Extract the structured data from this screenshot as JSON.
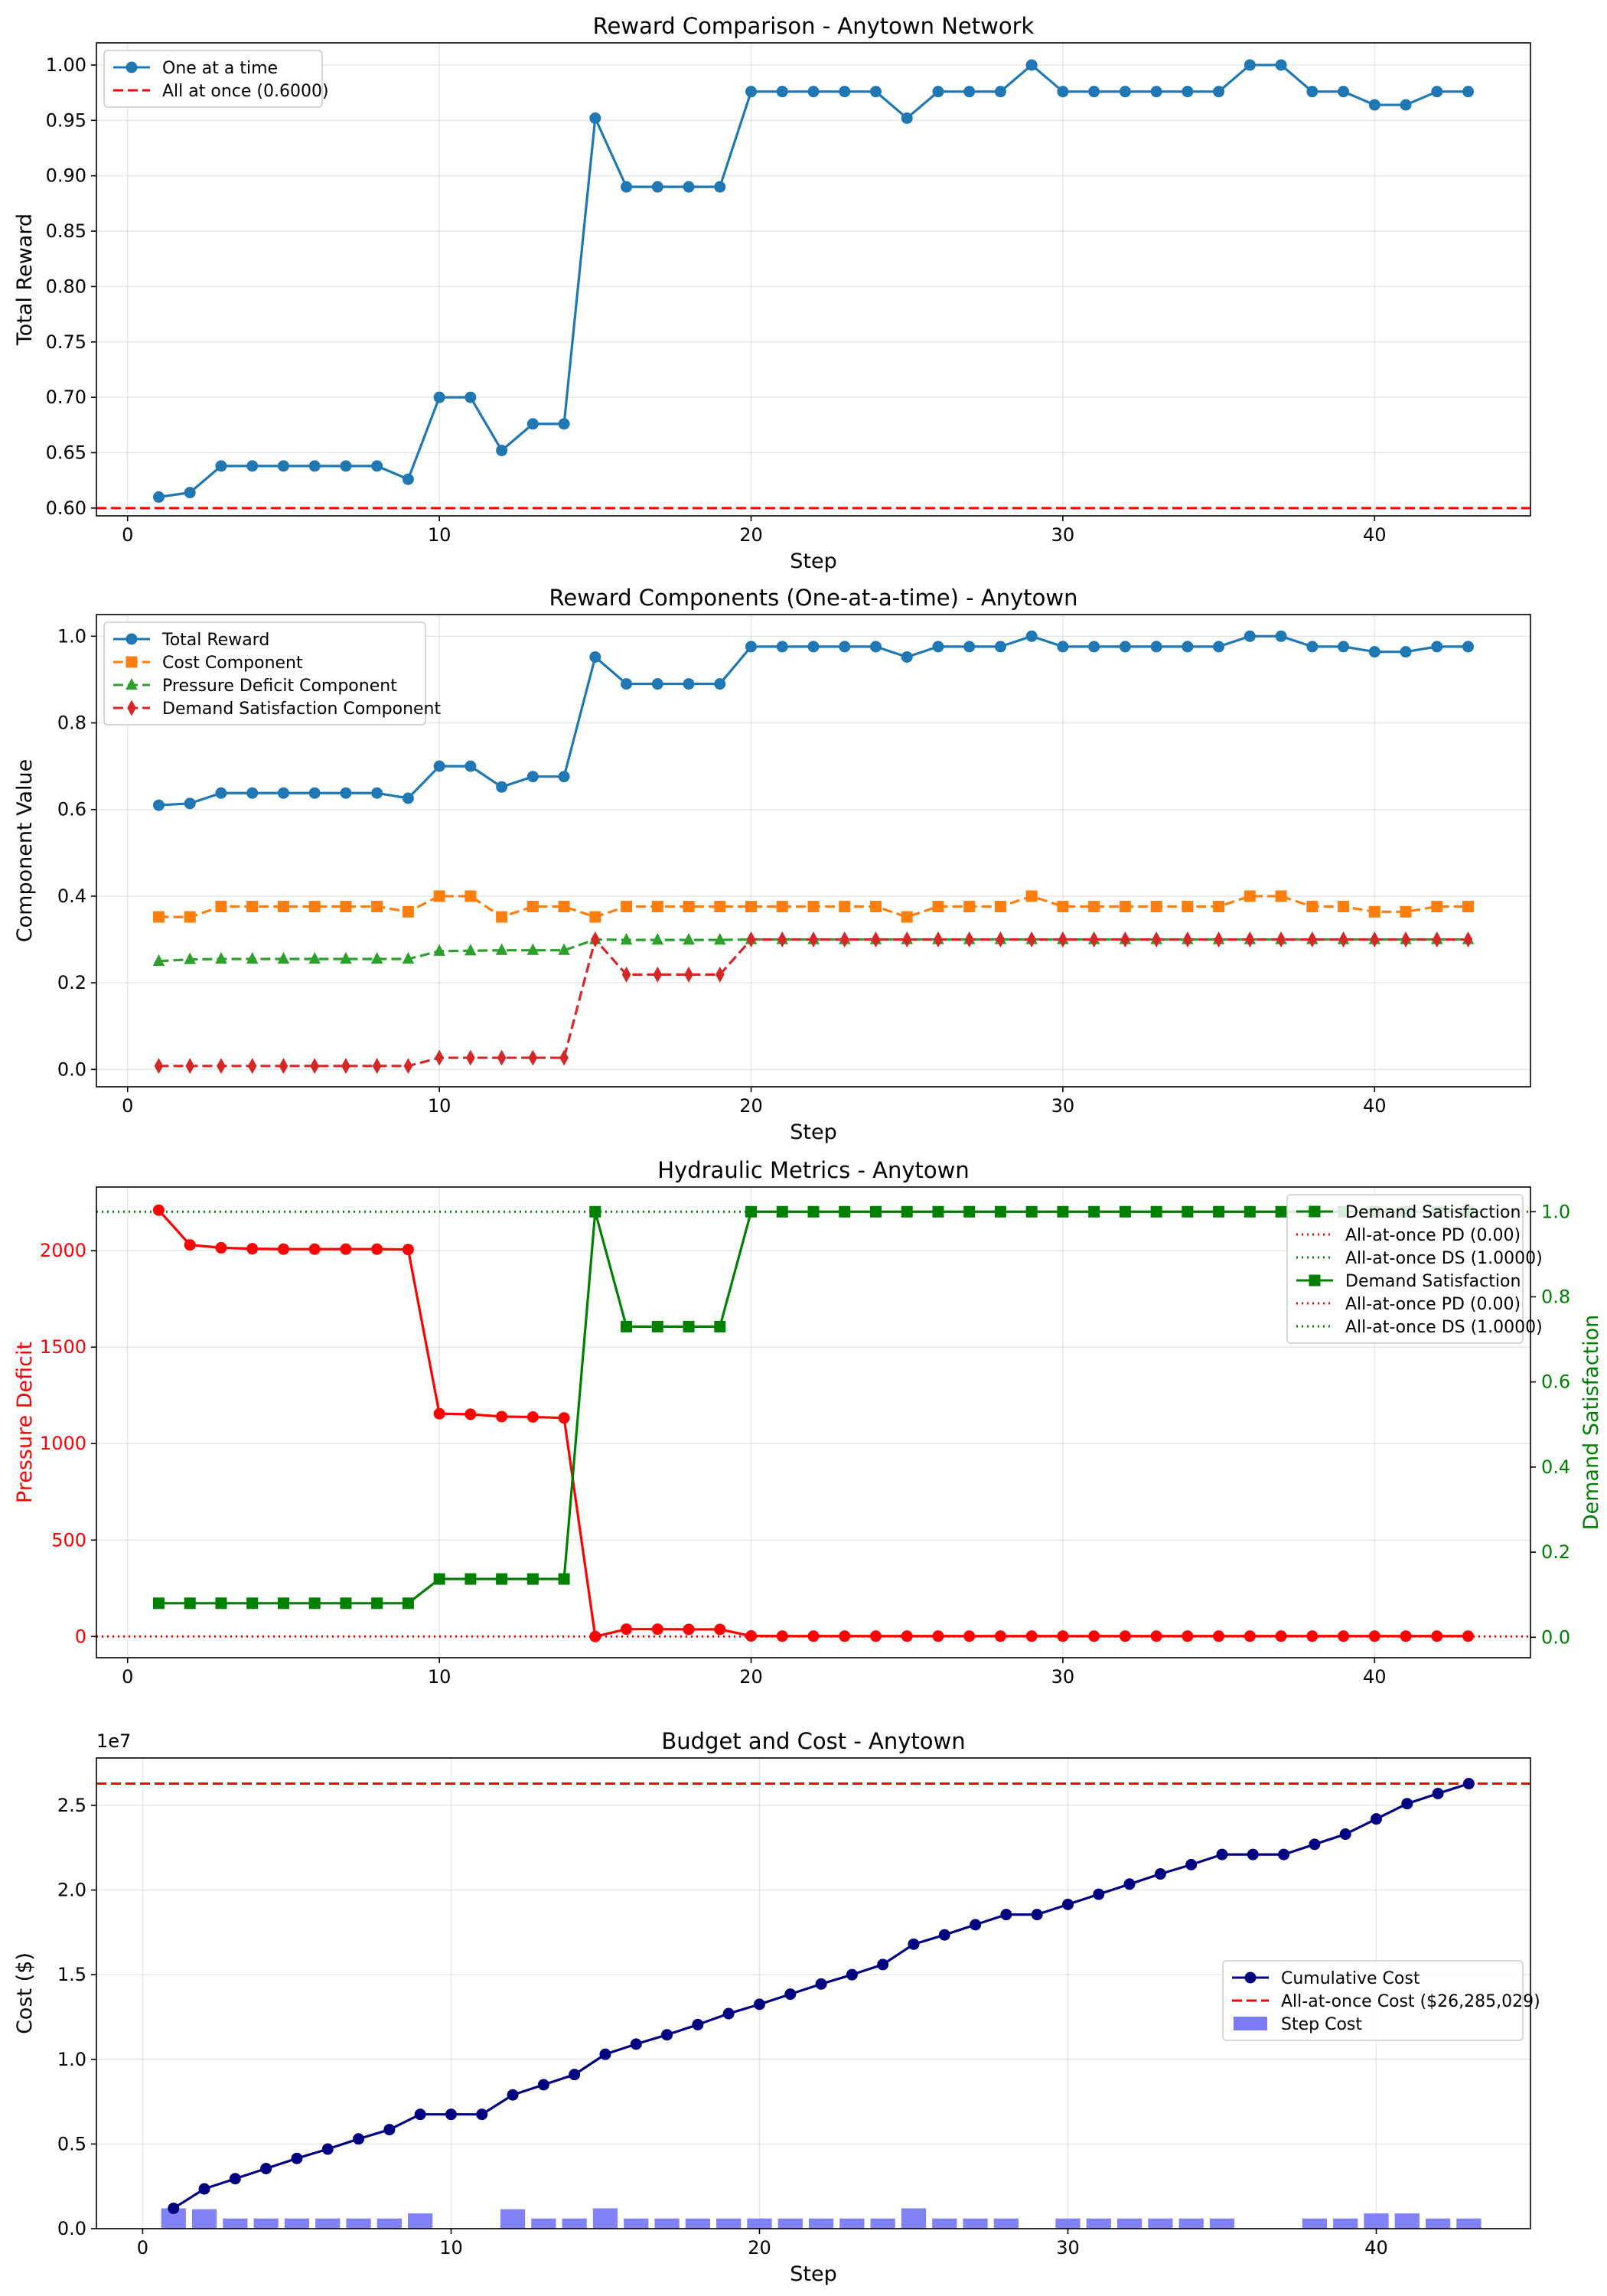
{
  "chart_data": [
    {
      "type": "line",
      "title": "Reward Comparison - Anytown Network",
      "xlabel": "Step",
      "ylabel": "Total Reward",
      "xlim": [
        -1,
        45
      ],
      "ylim": [
        0.593,
        1.02
      ],
      "xticks": [
        0,
        10,
        20,
        30,
        40
      ],
      "yticks": [
        0.6,
        0.65,
        0.7,
        0.75,
        0.8,
        0.85,
        0.9,
        0.95,
        1.0
      ],
      "grid": true,
      "legend_position": "upper left",
      "series": [
        {
          "name": "One at a time",
          "color": "#1f77b4",
          "x": [
            1,
            2,
            3,
            4,
            5,
            6,
            7,
            8,
            9,
            10,
            11,
            12,
            13,
            14,
            15,
            16,
            17,
            18,
            19,
            20,
            21,
            22,
            23,
            24,
            25,
            26,
            27,
            28,
            29,
            30,
            31,
            32,
            33,
            34,
            35,
            36,
            37,
            38,
            39,
            40,
            41,
            42,
            43
          ],
          "y": [
            0.61,
            0.614,
            0.638,
            0.638,
            0.638,
            0.638,
            0.638,
            0.638,
            0.626,
            0.7,
            0.7,
            0.652,
            0.676,
            0.676,
            0.952,
            0.89,
            0.89,
            0.89,
            0.89,
            0.976,
            0.976,
            0.976,
            0.976,
            0.976,
            0.952,
            0.976,
            0.976,
            0.976,
            1.0,
            0.976,
            0.976,
            0.976,
            0.976,
            0.976,
            0.976,
            1.0,
            1.0,
            0.976,
            0.976,
            0.964,
            0.964,
            0.976,
            0.976
          ]
        }
      ],
      "hlines": [
        {
          "name": "All at once (0.6000)",
          "y": 0.6,
          "color": "#ff0000",
          "style": "dashed"
        }
      ]
    },
    {
      "type": "line",
      "title": "Reward Components (One-at-a-time) - Anytown",
      "xlabel": "Step",
      "ylabel": "Component Value",
      "xlim": [
        -1,
        45
      ],
      "ylim": [
        -0.04,
        1.05
      ],
      "xticks": [
        0,
        10,
        20,
        30,
        40
      ],
      "yticks": [
        0.0,
        0.2,
        0.4,
        0.6,
        0.8,
        1.0
      ],
      "grid": true,
      "legend_position": "upper left",
      "series": [
        {
          "name": "Total Reward",
          "color": "#1f77b4",
          "marker": "circle",
          "style": "solid",
          "x": [
            1,
            2,
            3,
            4,
            5,
            6,
            7,
            8,
            9,
            10,
            11,
            12,
            13,
            14,
            15,
            16,
            17,
            18,
            19,
            20,
            21,
            22,
            23,
            24,
            25,
            26,
            27,
            28,
            29,
            30,
            31,
            32,
            33,
            34,
            35,
            36,
            37,
            38,
            39,
            40,
            41,
            42,
            43
          ],
          "y": [
            0.61,
            0.614,
            0.638,
            0.638,
            0.638,
            0.638,
            0.638,
            0.638,
            0.626,
            0.7,
            0.7,
            0.652,
            0.676,
            0.676,
            0.952,
            0.89,
            0.89,
            0.89,
            0.89,
            0.976,
            0.976,
            0.976,
            0.976,
            0.976,
            0.952,
            0.976,
            0.976,
            0.976,
            1.0,
            0.976,
            0.976,
            0.976,
            0.976,
            0.976,
            0.976,
            1.0,
            1.0,
            0.976,
            0.976,
            0.964,
            0.964,
            0.976,
            0.976
          ]
        },
        {
          "name": "Cost Component",
          "color": "#ff7f0e",
          "marker": "square",
          "style": "dashed",
          "x": [
            1,
            2,
            3,
            4,
            5,
            6,
            7,
            8,
            9,
            10,
            11,
            12,
            13,
            14,
            15,
            16,
            17,
            18,
            19,
            20,
            21,
            22,
            23,
            24,
            25,
            26,
            27,
            28,
            29,
            30,
            31,
            32,
            33,
            34,
            35,
            36,
            37,
            38,
            39,
            40,
            41,
            42,
            43
          ],
          "y": [
            0.352,
            0.352,
            0.376,
            0.376,
            0.376,
            0.376,
            0.376,
            0.376,
            0.364,
            0.4,
            0.4,
            0.352,
            0.376,
            0.376,
            0.352,
            0.376,
            0.376,
            0.376,
            0.376,
            0.376,
            0.376,
            0.376,
            0.376,
            0.376,
            0.352,
            0.376,
            0.376,
            0.376,
            0.4,
            0.376,
            0.376,
            0.376,
            0.376,
            0.376,
            0.376,
            0.4,
            0.4,
            0.376,
            0.376,
            0.364,
            0.364,
            0.376,
            0.376
          ]
        },
        {
          "name": "Pressure Deficit Component",
          "color": "#2ca02c",
          "marker": "triangle",
          "style": "dashed",
          "x": [
            1,
            2,
            3,
            4,
            5,
            6,
            7,
            8,
            9,
            10,
            11,
            12,
            13,
            14,
            15,
            16,
            17,
            18,
            19,
            20,
            21,
            22,
            23,
            24,
            25,
            26,
            27,
            28,
            29,
            30,
            31,
            32,
            33,
            34,
            35,
            36,
            37,
            38,
            39,
            40,
            41,
            42,
            43
          ],
          "y": [
            0.25,
            0.254,
            0.255,
            0.255,
            0.255,
            0.255,
            0.255,
            0.255,
            0.255,
            0.273,
            0.274,
            0.275,
            0.275,
            0.275,
            0.3,
            0.299,
            0.299,
            0.299,
            0.299,
            0.3,
            0.3,
            0.3,
            0.3,
            0.3,
            0.3,
            0.3,
            0.3,
            0.3,
            0.3,
            0.3,
            0.3,
            0.3,
            0.3,
            0.3,
            0.3,
            0.3,
            0.3,
            0.3,
            0.3,
            0.3,
            0.3,
            0.3,
            0.3
          ]
        },
        {
          "name": "Demand Satisfaction Component",
          "color": "#d62728",
          "marker": "diamond",
          "style": "dashed",
          "x": [
            1,
            2,
            3,
            4,
            5,
            6,
            7,
            8,
            9,
            10,
            11,
            12,
            13,
            14,
            15,
            16,
            17,
            18,
            19,
            20,
            21,
            22,
            23,
            24,
            25,
            26,
            27,
            28,
            29,
            30,
            31,
            32,
            33,
            34,
            35,
            36,
            37,
            38,
            39,
            40,
            41,
            42,
            43
          ],
          "y": [
            0.008,
            0.008,
            0.008,
            0.008,
            0.008,
            0.008,
            0.008,
            0.008,
            0.008,
            0.027,
            0.027,
            0.027,
            0.027,
            0.027,
            0.3,
            0.219,
            0.219,
            0.219,
            0.219,
            0.3,
            0.3,
            0.3,
            0.3,
            0.3,
            0.3,
            0.3,
            0.3,
            0.3,
            0.3,
            0.3,
            0.3,
            0.3,
            0.3,
            0.3,
            0.3,
            0.3,
            0.3,
            0.3,
            0.3,
            0.3,
            0.3,
            0.3,
            0.3
          ]
        }
      ]
    },
    {
      "type": "line",
      "title": "Hydraulic Metrics - Anytown",
      "xlabel": "",
      "ylabel": "Pressure Deficit",
      "ylabel_right": "Demand Satisfaction",
      "xlim": [
        -1,
        45
      ],
      "ylim": [
        -110,
        2330
      ],
      "ylim_right": [
        -0.048,
        1.058
      ],
      "xticks": [
        0,
        10,
        20,
        30,
        40
      ],
      "yticks": [
        0,
        500,
        1000,
        1500,
        2000
      ],
      "yticks_right": [
        0.0,
        0.2,
        0.4,
        0.6,
        0.8,
        1.0
      ],
      "yticklabels_right": [
        "0.0",
        "0.2",
        "0.4",
        "0.6",
        "0.8",
        "1.0"
      ],
      "grid": true,
      "legend_position": "upper right",
      "series": [
        {
          "name": "Pressure Deficit",
          "axis": "left",
          "color": "#ff0000",
          "marker": "circle",
          "x": [
            1,
            2,
            3,
            4,
            5,
            6,
            7,
            8,
            9,
            10,
            11,
            12,
            13,
            14,
            15,
            16,
            17,
            18,
            19,
            20,
            21,
            22,
            23,
            24,
            25,
            26,
            27,
            28,
            29,
            30,
            31,
            32,
            33,
            34,
            35,
            36,
            37,
            38,
            39,
            40,
            41,
            42,
            43
          ],
          "y": [
            2210,
            2030,
            2015,
            2010,
            2008,
            2008,
            2008,
            2008,
            2006,
            1155,
            1152,
            1140,
            1138,
            1133,
            0,
            38,
            38,
            37,
            37,
            3,
            2,
            2,
            2,
            2,
            2,
            2,
            2,
            2,
            2,
            2,
            2,
            2,
            2,
            2,
            2,
            2,
            2,
            2,
            2,
            2,
            2,
            2,
            2
          ]
        },
        {
          "name": "Demand Satisfaction",
          "axis": "right",
          "color": "#008000",
          "marker": "square",
          "x": [
            1,
            2,
            3,
            4,
            5,
            6,
            7,
            8,
            9,
            10,
            11,
            12,
            13,
            14,
            15,
            16,
            17,
            18,
            19,
            20,
            21,
            22,
            23,
            24,
            25,
            26,
            27,
            28,
            29,
            30,
            31,
            32,
            33,
            34,
            35,
            36,
            37,
            38,
            39,
            40,
            41,
            42,
            43
          ],
          "y": [
            0.08,
            0.08,
            0.08,
            0.08,
            0.08,
            0.08,
            0.08,
            0.08,
            0.08,
            0.137,
            0.137,
            0.137,
            0.137,
            0.137,
            1.0,
            0.73,
            0.73,
            0.73,
            0.73,
            1.0,
            1.0,
            1.0,
            1.0,
            1.0,
            1.0,
            1.0,
            1.0,
            1.0,
            1.0,
            1.0,
            1.0,
            1.0,
            1.0,
            1.0,
            1.0,
            1.0,
            1.0,
            1.0,
            1.0,
            1.0,
            1.0,
            1.0,
            1.0
          ]
        }
      ],
      "hlines": [
        {
          "name": "All-at-once PD (0.00)",
          "axis": "left",
          "y": 0,
          "color": "#ff0000",
          "style": "dotted"
        },
        {
          "name": "All-at-once DS (1.0000)",
          "axis": "right",
          "y": 1.0,
          "color": "#008000",
          "style": "dotted"
        }
      ],
      "legend_entries": [
        {
          "label": "Demand Satisfaction",
          "color": "#008000",
          "kind": "line-marker"
        },
        {
          "label": "All-at-once PD (0.00)",
          "color": "#ff0000",
          "kind": "dotted"
        },
        {
          "label": "All-at-once DS (1.0000)",
          "color": "#008000",
          "kind": "dotted"
        },
        {
          "label": "Demand Satisfaction",
          "color": "#008000",
          "kind": "line-marker"
        },
        {
          "label": "All-at-once PD (0.00)",
          "color": "#ff0000",
          "kind": "dotted"
        },
        {
          "label": "All-at-once DS (1.0000)",
          "color": "#008000",
          "kind": "dotted"
        }
      ]
    },
    {
      "type": "bar+line",
      "title": "Budget and Cost - Anytown",
      "xlabel": "Step",
      "ylabel": "Cost ($)",
      "offset_label": "1e7",
      "scale": 10000000,
      "xlim": [
        -1.5,
        45
      ],
      "ylim": [
        0,
        27800000
      ],
      "xticks": [
        0,
        10,
        20,
        30,
        40
      ],
      "yticks": [
        0.0,
        0.5,
        1.0,
        1.5,
        2.0,
        2.5
      ],
      "grid": true,
      "legend_position": "center right",
      "series": [
        {
          "name": "Cumulative Cost",
          "color": "#000080",
          "marker": "circle",
          "x": [
            1,
            2,
            3,
            4,
            5,
            6,
            7,
            8,
            9,
            10,
            11,
            12,
            13,
            14,
            15,
            16,
            17,
            18,
            19,
            20,
            21,
            22,
            23,
            24,
            25,
            26,
            27,
            28,
            29,
            30,
            31,
            32,
            33,
            34,
            35,
            36,
            37,
            38,
            39,
            40,
            41,
            42,
            43
          ],
          "y": [
            1200000,
            2350000,
            2950000,
            3550000,
            4150000,
            4700000,
            5300000,
            5850000,
            6750000,
            6750000,
            6750000,
            7900000,
            8500000,
            9100000,
            10300000,
            10900000,
            11450000,
            12050000,
            12700000,
            13250000,
            13850000,
            14450000,
            15000000,
            15600000,
            16800000,
            17350000,
            17950000,
            18550000,
            18550000,
            19150000,
            19750000,
            20350000,
            20950000,
            21500000,
            22100000,
            22100000,
            22100000,
            22700000,
            23300000,
            24200000,
            25100000,
            25700000,
            26285029
          ]
        },
        {
          "name": "Step Cost",
          "type": "bar",
          "color": "#7b7bf7",
          "x": [
            1,
            2,
            3,
            4,
            5,
            6,
            7,
            8,
            9,
            10,
            11,
            12,
            13,
            14,
            15,
            16,
            17,
            18,
            19,
            20,
            21,
            22,
            23,
            24,
            25,
            26,
            27,
            28,
            29,
            30,
            31,
            32,
            33,
            34,
            35,
            36,
            37,
            38,
            39,
            40,
            41,
            42,
            43
          ],
          "y": [
            1200000,
            1150000,
            600000,
            600000,
            600000,
            600000,
            600000,
            600000,
            900000,
            0,
            0,
            1150000,
            600000,
            600000,
            1200000,
            600000,
            600000,
            600000,
            600000,
            600000,
            600000,
            600000,
            600000,
            600000,
            1200000,
            600000,
            600000,
            600000,
            0,
            600000,
            600000,
            600000,
            600000,
            600000,
            600000,
            0,
            0,
            600000,
            600000,
            900000,
            900000,
            600000,
            600000
          ]
        }
      ],
      "hlines": [
        {
          "name": "All-at-once Cost ($26,285,029)",
          "y": 26285029,
          "color": "#ff0000",
          "style": "dashed"
        }
      ]
    }
  ]
}
